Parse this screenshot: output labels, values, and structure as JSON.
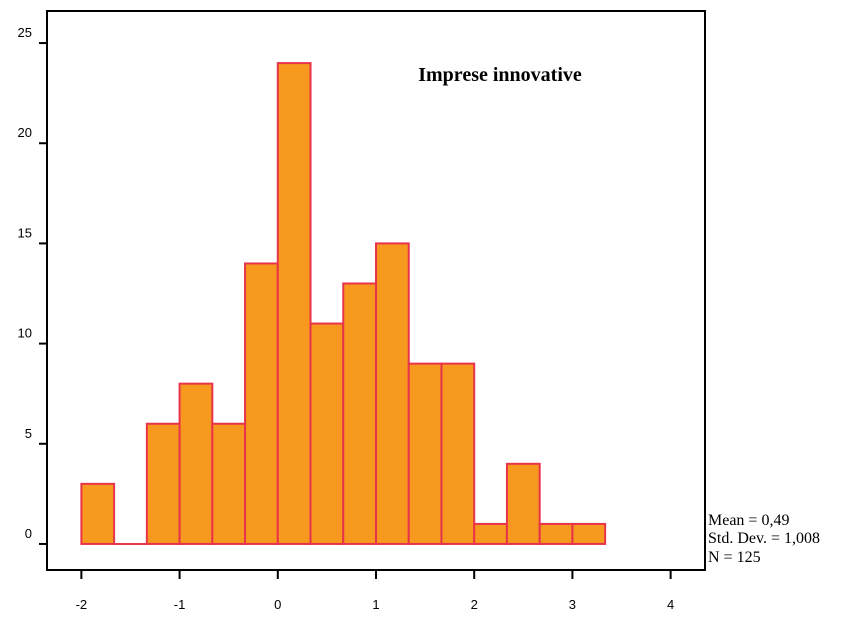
{
  "chart_data": {
    "type": "bar",
    "title": "Imprese innovative",
    "xlabel": "",
    "ylabel": "",
    "bin_width": 0.333333,
    "bins": [
      {
        "start": -2.0,
        "end": -1.666667,
        "count": 3
      },
      {
        "start": -1.666667,
        "end": -1.333333,
        "count": 0
      },
      {
        "start": -1.333333,
        "end": -1.0,
        "count": 6
      },
      {
        "start": -1.0,
        "end": -0.666667,
        "count": 8
      },
      {
        "start": -0.666667,
        "end": -0.333333,
        "count": 6
      },
      {
        "start": -0.333333,
        "end": 0.0,
        "count": 14
      },
      {
        "start": 0.0,
        "end": 0.333333,
        "count": 24
      },
      {
        "start": 0.333333,
        "end": 0.666667,
        "count": 11
      },
      {
        "start": 0.666667,
        "end": 1.0,
        "count": 13
      },
      {
        "start": 1.0,
        "end": 1.333333,
        "count": 15
      },
      {
        "start": 1.333333,
        "end": 1.666667,
        "count": 9
      },
      {
        "start": 1.666667,
        "end": 2.0,
        "count": 9
      },
      {
        "start": 2.0,
        "end": 2.333333,
        "count": 1
      },
      {
        "start": 2.333333,
        "end": 2.666667,
        "count": 4
      },
      {
        "start": 2.666667,
        "end": 3.0,
        "count": 1
      },
      {
        "start": 3.0,
        "end": 3.333333,
        "count": 1
      }
    ],
    "xlim": [
      -2.35,
      4.35
    ],
    "ylim": [
      -1.3,
      26.6
    ],
    "x_ticks": [
      -2,
      -1,
      0,
      1,
      2,
      3,
      4
    ],
    "y_ticks": [
      0,
      5,
      10,
      15,
      20,
      25
    ],
    "bar_fill": "#F7991E",
    "bar_stroke": "#E8344A",
    "grid": false,
    "legend": "none"
  },
  "stats": {
    "mean": "Mean = 0,49",
    "std_dev": "Std. Dev. = 1,008",
    "n": "N = 125"
  }
}
